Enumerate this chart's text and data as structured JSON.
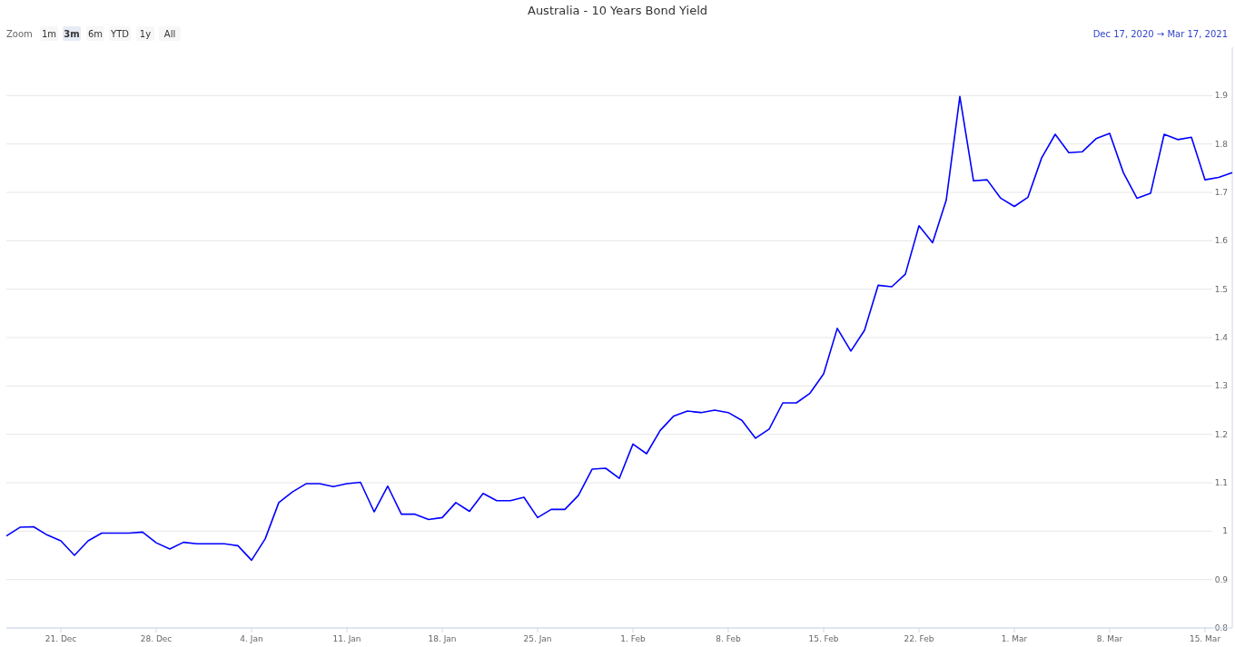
{
  "chart_data": {
    "type": "line",
    "title": "Australia - 10 Years Bond Yield",
    "annotations": [
      "Zoom",
      "1m",
      "3m",
      "6m",
      "YTD",
      "1y",
      "All",
      "Dec 17, 2020",
      "→",
      "Mar 17, 2021"
    ],
    "x": [
      "2020-12-17",
      "2020-12-18",
      "2020-12-19",
      "2020-12-20",
      "2020-12-21",
      "2020-12-22",
      "2020-12-23",
      "2020-12-24",
      "2020-12-25",
      "2020-12-26",
      "2020-12-27",
      "2020-12-28",
      "2020-12-29",
      "2020-12-30",
      "2020-12-31",
      "2021-01-01",
      "2021-01-02",
      "2021-01-03",
      "2021-01-04",
      "2021-01-05",
      "2021-01-06",
      "2021-01-07",
      "2021-01-08",
      "2021-01-09",
      "2021-01-10",
      "2021-01-11",
      "2021-01-12",
      "2021-01-13",
      "2021-01-14",
      "2021-01-15",
      "2021-01-16",
      "2021-01-17",
      "2021-01-18",
      "2021-01-19",
      "2021-01-20",
      "2021-01-21",
      "2021-01-22",
      "2021-01-23",
      "2021-01-24",
      "2021-01-25",
      "2021-01-26",
      "2021-01-27",
      "2021-01-28",
      "2021-01-29",
      "2021-01-30",
      "2021-01-31",
      "2021-02-01",
      "2021-02-02",
      "2021-02-03",
      "2021-02-04",
      "2021-02-05",
      "2021-02-06",
      "2021-02-07",
      "2021-02-08",
      "2021-02-09",
      "2021-02-10",
      "2021-02-11",
      "2021-02-12",
      "2021-02-13",
      "2021-02-14",
      "2021-02-15",
      "2021-02-16",
      "2021-02-17",
      "2021-02-18",
      "2021-02-19",
      "2021-02-20",
      "2021-02-21",
      "2021-02-22",
      "2021-02-23",
      "2021-02-24",
      "2021-02-25",
      "2021-02-26",
      "2021-02-27",
      "2021-02-28",
      "2021-03-01",
      "2021-03-02",
      "2021-03-03",
      "2021-03-04",
      "2021-03-05",
      "2021-03-06",
      "2021-03-07",
      "2021-03-08",
      "2021-03-09",
      "2021-03-10",
      "2021-03-11",
      "2021-03-12",
      "2021-03-13",
      "2021-03-14",
      "2021-03-15",
      "2021-03-16",
      "2021-03-17"
    ],
    "series": [
      {
        "color": "#0000ff",
        "values": [
          0.99,
          1.008,
          1.009,
          0.992,
          0.98,
          0.95,
          0.98,
          0.996,
          0.996,
          0.996,
          0.998,
          0.976,
          0.963,
          0.977,
          0.974,
          0.974,
          0.974,
          0.97,
          0.94,
          0.984,
          1.059,
          1.081,
          1.098,
          1.098,
          1.092,
          1.098,
          1.101,
          1.04,
          1.093,
          1.035,
          1.035,
          1.024,
          1.028,
          1.059,
          1.041,
          1.078,
          1.063,
          1.063,
          1.07,
          1.028,
          1.045,
          1.045,
          1.074,
          1.128,
          1.13,
          1.109,
          1.18,
          1.16,
          1.208,
          1.238,
          1.248,
          1.245,
          1.25,
          1.245,
          1.229,
          1.192,
          1.211,
          1.265,
          1.265,
          1.285,
          1.325,
          1.419,
          1.372,
          1.415,
          1.508,
          1.505,
          1.531,
          1.631,
          1.596,
          1.684,
          1.898,
          1.724,
          1.726,
          1.688,
          1.671,
          1.69,
          1.771,
          1.82,
          1.782,
          1.784,
          1.811,
          1.822,
          1.741,
          1.688,
          1.698,
          1.82,
          1.809,
          1.814,
          1.726,
          1.731,
          1.741
        ]
      }
    ],
    "xlim": [
      "2020-12-17",
      "2021-03-17"
    ],
    "xticks": [
      {
        "value": "2020-12-21",
        "label": "21. Dec"
      },
      {
        "value": "2020-12-28",
        "label": "28. Dec"
      },
      {
        "value": "2021-01-04",
        "label": "4. Jan"
      },
      {
        "value": "2021-01-11",
        "label": "11. Jan"
      },
      {
        "value": "2021-01-18",
        "label": "18. Jan"
      },
      {
        "value": "2021-01-25",
        "label": "25. Jan"
      },
      {
        "value": "2021-02-01",
        "label": "1. Feb"
      },
      {
        "value": "2021-02-08",
        "label": "8. Feb"
      },
      {
        "value": "2021-02-15",
        "label": "15. Feb"
      },
      {
        "value": "2021-02-22",
        "label": "22. Feb"
      },
      {
        "value": "2021-03-01",
        "label": "1. Mar"
      },
      {
        "value": "2021-03-08",
        "label": "8. Mar"
      },
      {
        "value": "2021-03-15",
        "label": "15. Mar"
      }
    ],
    "ylim": [
      0.8,
      2.0
    ],
    "yticks": [
      0.8,
      0.9,
      1,
      1.1,
      1.2,
      1.3,
      1.4,
      1.5,
      1.6,
      1.7,
      1.8,
      1.9
    ],
    "grid": "y",
    "marker": "none",
    "line_style": "solid"
  }
}
